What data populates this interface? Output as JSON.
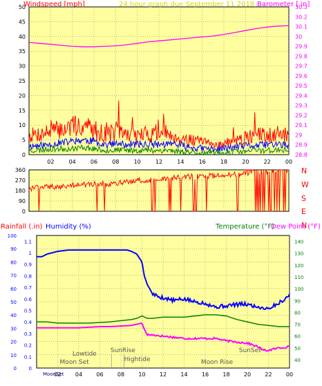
{
  "header": {
    "wind_label": "Windspeed [mph]",
    "graph_title": "24 hour graph due   September 11 2018",
    "baro_label": "Barometer [ in]"
  },
  "direction_labels": [
    "N",
    "W",
    "S",
    "E",
    "N"
  ],
  "bottom_header": {
    "rain_label": "Rainfall (.in)",
    "humidity_label": "Humidity (%)",
    "temp_label": "Temperature (°F)",
    "dew_label": "Dew Point (°F)"
  },
  "colors": {
    "background": "#ffffff",
    "plot_bg": "#ffffa0",
    "grid": "#6e6e6e",
    "wind_gust": "#ff0000",
    "wind_avg": "#0000ff",
    "wind_low": "#008000",
    "barometer": "#ff00ff",
    "direction": "#ff0000",
    "humidity": "#0000ff",
    "temperature": "#008000",
    "dewpoint": "#ff00ff",
    "rain_axis": "#0000ff",
    "temp_axis": "#008000",
    "annotation": "#555555"
  },
  "chart_data": [
    {
      "type": "line",
      "name": "wind-barometer",
      "x_ticks": [
        "02",
        "04",
        "06",
        "08",
        "10",
        "12",
        "14",
        "16",
        "18",
        "20",
        "22",
        "00"
      ],
      "x_range": [
        0,
        24
      ],
      "y_left_ticks": [
        "0",
        "5",
        "10",
        "15",
        "20",
        "25",
        "30",
        "35",
        "40",
        "45",
        "50"
      ],
      "y_left_range": [
        0,
        50
      ],
      "y_right_ticks": [
        "28.8",
        "28.9",
        "29",
        "29.1",
        "29.2",
        "29.3",
        "29.4",
        "29.5",
        "29.6",
        "29.7",
        "29.8",
        "29.9",
        "30",
        "30.1",
        "30.2",
        "30.3"
      ],
      "y_right_range": [
        28.8,
        30.3
      ],
      "series": [
        {
          "name": "Barometer [ in]",
          "axis": "right",
          "x": [
            0,
            1,
            2,
            3,
            4,
            5,
            6,
            7,
            8,
            9,
            10,
            11,
            12,
            13,
            14,
            15,
            16,
            17,
            18,
            19,
            20,
            21,
            22,
            23,
            24
          ],
          "y": [
            29.94,
            29.93,
            29.92,
            29.91,
            29.9,
            29.895,
            29.895,
            29.9,
            29.905,
            29.915,
            29.93,
            29.945,
            29.955,
            29.965,
            29.975,
            29.985,
            29.995,
            30.005,
            30.02,
            30.04,
            30.06,
            30.08,
            30.095,
            30.105,
            30.11
          ]
        },
        {
          "name": "gust",
          "axis": "left",
          "x": [
            0,
            1,
            2,
            3,
            4,
            5,
            6,
            7,
            8,
            9,
            10,
            11,
            12,
            13,
            14,
            15,
            16,
            17,
            18,
            19,
            20,
            21,
            22,
            23,
            24
          ],
          "y": [
            9,
            10,
            11,
            12,
            13,
            14,
            12,
            10,
            11,
            10,
            9,
            10,
            11,
            10,
            8,
            7,
            6,
            5,
            5,
            6,
            8,
            9,
            10,
            10,
            9
          ]
        },
        {
          "name": "gust-low",
          "axis": "left",
          "x": [
            0,
            1,
            2,
            3,
            4,
            5,
            6,
            7,
            8,
            9,
            10,
            11,
            12,
            13,
            14,
            15,
            16,
            17,
            18,
            19,
            20,
            21,
            22,
            23,
            24
          ],
          "y": [
            4,
            4,
            5,
            5,
            6,
            6,
            5,
            4,
            4,
            4,
            4,
            4,
            4,
            4,
            3,
            3,
            2,
            2,
            2,
            3,
            3,
            4,
            4,
            4,
            4
          ]
        },
        {
          "name": "average",
          "axis": "left",
          "x": [
            0,
            1,
            2,
            3,
            4,
            5,
            6,
            7,
            8,
            9,
            10,
            11,
            12,
            13,
            14,
            15,
            16,
            17,
            18,
            19,
            20,
            21,
            22,
            23,
            24
          ],
          "y": [
            3,
            3,
            3.5,
            4,
            4.5,
            5,
            4.5,
            3.5,
            3.5,
            3.5,
            3.5,
            3.5,
            3.5,
            3.5,
            3,
            2.5,
            2,
            2,
            2,
            2.5,
            3,
            3,
            3.5,
            3.5,
            3
          ]
        },
        {
          "name": "low",
          "axis": "left",
          "x": [
            0,
            1,
            2,
            3,
            4,
            5,
            6,
            7,
            8,
            9,
            10,
            11,
            12,
            13,
            14,
            15,
            16,
            17,
            18,
            19,
            20,
            21,
            22,
            23,
            24
          ],
          "y": [
            1.5,
            1.5,
            2,
            2,
            2,
            2.5,
            2,
            1.5,
            1.5,
            1.5,
            1.5,
            1.5,
            1.5,
            1.5,
            1,
            1,
            0.5,
            0.5,
            0.5,
            1,
            1,
            1.5,
            1.5,
            1.5,
            1.5
          ]
        }
      ]
    },
    {
      "type": "line",
      "name": "wind-direction",
      "y_ticks": [
        "0",
        "90",
        "180",
        "270",
        "360"
      ],
      "y_range": [
        0,
        360
      ],
      "x_range": [
        0,
        24
      ],
      "series": [
        {
          "name": "direction",
          "x": [
            0,
            1,
            2,
            3,
            4,
            5,
            6,
            7,
            8,
            9,
            10,
            11,
            12,
            13,
            14,
            15,
            16,
            17,
            18,
            19,
            20,
            21,
            22,
            23,
            24
          ],
          "y": [
            200,
            205,
            210,
            215,
            225,
            230,
            240,
            235,
            245,
            255,
            265,
            275,
            280,
            290,
            295,
            300,
            305,
            310,
            315,
            320,
            330,
            335,
            340,
            340,
            340
          ]
        }
      ]
    },
    {
      "type": "line",
      "name": "rain-humidity-temperature",
      "x_ticks": [
        "02",
        "04",
        "06",
        "08",
        "10",
        "12",
        "14",
        "16",
        "18",
        "20",
        "22",
        "00"
      ],
      "x_range": [
        0,
        24
      ],
      "y_rain_ticks": [
        "0",
        "0.1",
        "0.2",
        "0.3",
        "0.4",
        "0.5",
        "0.6",
        "0.7",
        "0.8",
        "0.9",
        "1",
        "1.1"
      ],
      "y_rain_range": [
        0,
        1.15
      ],
      "y_humidity_ticks": [
        "0",
        "10",
        "20",
        "30",
        "40",
        "50",
        "60",
        "70",
        "80",
        "90",
        "100"
      ],
      "y_humidity_range": [
        0,
        100
      ],
      "y_temp_ticks": [
        "40",
        "50",
        "60",
        "70",
        "80",
        "90",
        "100",
        "110",
        "120",
        "130",
        "140"
      ],
      "y_temp_range": [
        33,
        145
      ],
      "annotations": [
        {
          "text": "Lowtide",
          "x": 3.4
        },
        {
          "text": "Moon Set",
          "x": 2.2
        },
        {
          "text": "SunRise",
          "x": 7
        },
        {
          "text": "Hightide",
          "x": 8.3
        },
        {
          "text": "Moon Rise",
          "x": 15.6
        },
        {
          "text": "SunSet",
          "x": 19.2
        },
        {
          "text": "MoonSet",
          "x": 2.2
        }
      ],
      "series": [
        {
          "name": "Humidity (%)",
          "axis": "humidity",
          "x": [
            0,
            0.5,
            1,
            2,
            3,
            4,
            5,
            6,
            7,
            8,
            8.6,
            9,
            9.5,
            10,
            10.2,
            10.5,
            11,
            11.5,
            12,
            13,
            14,
            15,
            16,
            17,
            18,
            19,
            20,
            21,
            22,
            23,
            24
          ],
          "y": [
            84,
            84,
            86,
            88,
            89,
            89,
            89,
            89,
            89,
            89,
            89,
            88,
            86,
            80,
            70,
            63,
            56,
            54,
            53,
            51,
            52,
            50,
            49,
            46,
            47,
            48,
            48,
            46,
            45,
            49,
            55
          ]
        },
        {
          "name": "Temperature (°F)",
          "axis": "temp",
          "x": [
            0,
            1,
            2,
            3,
            4,
            5,
            6,
            7,
            8,
            9,
            9.5,
            10,
            10.5,
            11,
            12,
            13,
            14,
            15,
            16,
            17,
            18,
            19,
            20,
            21,
            22,
            23,
            24
          ],
          "y": [
            72,
            72,
            71,
            71,
            71,
            71,
            71.5,
            72,
            73,
            74,
            75,
            77,
            75,
            75,
            76,
            76,
            76,
            77,
            78,
            78,
            77,
            74,
            72,
            70,
            69,
            68,
            68
          ]
        },
        {
          "name": "Dew Point (°F)",
          "axis": "temp",
          "x": [
            0,
            1,
            2,
            3,
            4,
            5,
            6,
            7,
            8,
            9,
            10,
            10.2,
            10.5,
            11,
            12,
            13,
            14,
            15,
            16,
            17,
            18,
            19,
            20,
            21,
            21.5,
            22,
            23,
            24
          ],
          "y": [
            67,
            67,
            67,
            67,
            67,
            67.5,
            68,
            68,
            68.5,
            69,
            71,
            66,
            61,
            61,
            60,
            59,
            58,
            58,
            58,
            58,
            56,
            55,
            54,
            51,
            48,
            48,
            50,
            51
          ]
        }
      ]
    }
  ]
}
